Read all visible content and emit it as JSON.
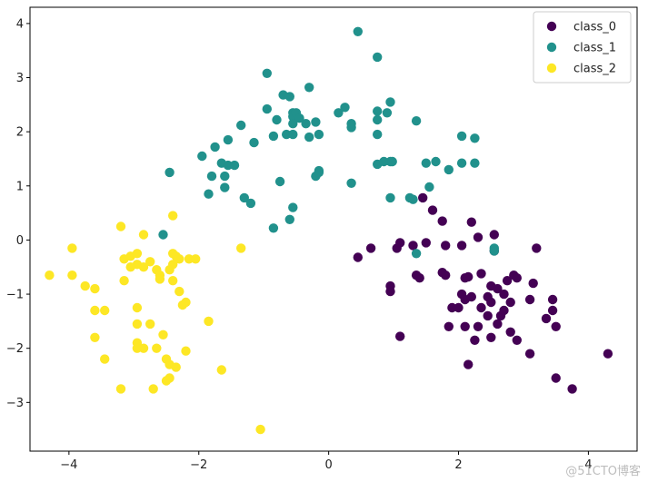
{
  "chart_data": {
    "type": "scatter",
    "xlim": [
      -4.6,
      4.75
    ],
    "ylim": [
      -3.9,
      4.3
    ],
    "xticks": [
      -4,
      -2,
      0,
      2,
      4
    ],
    "yticks": [
      -3,
      -2,
      -1,
      0,
      1,
      2,
      3,
      4
    ],
    "grid": false,
    "legend_position": "top-right",
    "series": [
      {
        "name": "class_0",
        "color": "#440154",
        "points": [
          [
            1.45,
            0.78
          ],
          [
            1.6,
            0.55
          ],
          [
            1.75,
            0.35
          ],
          [
            2.2,
            0.33
          ],
          [
            0.65,
            -0.15
          ],
          [
            0.45,
            -0.32
          ],
          [
            1.05,
            -0.15
          ],
          [
            1.1,
            -0.05
          ],
          [
            1.3,
            -0.1
          ],
          [
            1.5,
            -0.05
          ],
          [
            1.8,
            -0.1
          ],
          [
            2.05,
            -0.1
          ],
          [
            2.3,
            0.05
          ],
          [
            2.55,
            0.1
          ],
          [
            2.55,
            -0.2
          ],
          [
            3.2,
            -0.15
          ],
          [
            0.95,
            -0.85
          ],
          [
            0.95,
            -0.95
          ],
          [
            1.35,
            -0.65
          ],
          [
            1.4,
            -0.7
          ],
          [
            1.75,
            -0.6
          ],
          [
            1.8,
            -0.65
          ],
          [
            2.1,
            -0.7
          ],
          [
            2.15,
            -0.68
          ],
          [
            2.35,
            -0.62
          ],
          [
            2.5,
            -0.85
          ],
          [
            2.6,
            -0.9
          ],
          [
            2.75,
            -0.75
          ],
          [
            2.85,
            -0.65
          ],
          [
            2.9,
            -0.7
          ],
          [
            3.15,
            -0.8
          ],
          [
            2.05,
            -1.0
          ],
          [
            2.1,
            -1.1
          ],
          [
            2.2,
            -1.05
          ],
          [
            2.45,
            -1.05
          ],
          [
            2.5,
            -1.15
          ],
          [
            2.7,
            -1.0
          ],
          [
            2.8,
            -1.15
          ],
          [
            3.1,
            -1.1
          ],
          [
            3.45,
            -1.1
          ],
          [
            1.9,
            -1.25
          ],
          [
            2.0,
            -1.25
          ],
          [
            2.35,
            -1.25
          ],
          [
            2.45,
            -1.4
          ],
          [
            2.65,
            -1.4
          ],
          [
            2.7,
            -1.3
          ],
          [
            3.45,
            -1.3
          ],
          [
            3.35,
            -1.45
          ],
          [
            1.85,
            -1.6
          ],
          [
            2.1,
            -1.6
          ],
          [
            2.3,
            -1.6
          ],
          [
            2.6,
            -1.55
          ],
          [
            3.5,
            -1.6
          ],
          [
            1.1,
            -1.78
          ],
          [
            2.25,
            -1.85
          ],
          [
            2.5,
            -1.8
          ],
          [
            2.9,
            -1.85
          ],
          [
            2.8,
            -1.7
          ],
          [
            3.1,
            -2.1
          ],
          [
            4.3,
            -2.1
          ],
          [
            2.15,
            -2.3
          ],
          [
            3.5,
            -2.55
          ],
          [
            3.75,
            -2.75
          ]
        ]
      },
      {
        "name": "class_1",
        "color": "#21918c",
        "points": [
          [
            0.45,
            3.85
          ],
          [
            0.75,
            3.38
          ],
          [
            -0.95,
            3.08
          ],
          [
            -0.3,
            2.82
          ],
          [
            -0.95,
            2.42
          ],
          [
            -0.8,
            2.22
          ],
          [
            -0.7,
            2.68
          ],
          [
            -0.6,
            2.65
          ],
          [
            -0.55,
            2.35
          ],
          [
            -0.55,
            2.28
          ],
          [
            -0.5,
            2.35
          ],
          [
            -0.45,
            2.25
          ],
          [
            -0.55,
            2.15
          ],
          [
            -0.35,
            2.15
          ],
          [
            -0.2,
            2.18
          ],
          [
            0.15,
            2.35
          ],
          [
            0.25,
            2.45
          ],
          [
            0.35,
            2.15
          ],
          [
            0.75,
            2.38
          ],
          [
            0.75,
            2.22
          ],
          [
            0.9,
            2.35
          ],
          [
            0.95,
            2.55
          ],
          [
            1.35,
            2.2
          ],
          [
            -1.35,
            2.12
          ],
          [
            -0.85,
            1.92
          ],
          [
            -0.65,
            1.95
          ],
          [
            -0.55,
            1.95
          ],
          [
            -0.3,
            1.9
          ],
          [
            -0.15,
            1.95
          ],
          [
            0.35,
            2.08
          ],
          [
            0.75,
            1.95
          ],
          [
            -1.15,
            1.8
          ],
          [
            -1.55,
            1.85
          ],
          [
            -1.75,
            1.72
          ],
          [
            -1.95,
            1.55
          ],
          [
            -1.65,
            1.42
          ],
          [
            -1.55,
            1.38
          ],
          [
            -1.45,
            1.38
          ],
          [
            -1.6,
            1.18
          ],
          [
            -1.8,
            1.18
          ],
          [
            -2.45,
            1.25
          ],
          [
            -0.15,
            1.28
          ],
          [
            -0.2,
            1.18
          ],
          [
            -0.15,
            1.25
          ],
          [
            0.75,
            1.4
          ],
          [
            0.85,
            1.45
          ],
          [
            0.95,
            1.45
          ],
          [
            0.98,
            1.45
          ],
          [
            1.5,
            1.42
          ],
          [
            1.65,
            1.45
          ],
          [
            1.85,
            1.3
          ],
          [
            2.05,
            1.42
          ],
          [
            2.25,
            1.42
          ],
          [
            2.05,
            1.92
          ],
          [
            2.25,
            1.88
          ],
          [
            -0.75,
            1.08
          ],
          [
            -1.6,
            0.97
          ],
          [
            -1.85,
            0.85
          ],
          [
            -1.3,
            0.78
          ],
          [
            -1.2,
            0.68
          ],
          [
            -0.55,
            0.6
          ],
          [
            -0.85,
            0.22
          ],
          [
            -0.6,
            0.38
          ],
          [
            0.35,
            1.05
          ],
          [
            0.95,
            0.78
          ],
          [
            1.25,
            0.78
          ],
          [
            1.55,
            0.98
          ],
          [
            1.3,
            0.75
          ],
          [
            -2.55,
            0.1
          ],
          [
            1.35,
            -0.25
          ],
          [
            2.55,
            -0.2
          ],
          [
            2.55,
            -0.15
          ]
        ]
      },
      {
        "name": "class_2",
        "color": "#fde725",
        "points": [
          [
            -3.2,
            0.25
          ],
          [
            -2.85,
            0.1
          ],
          [
            -2.4,
            0.45
          ],
          [
            -1.35,
            -0.15
          ],
          [
            -3.95,
            -0.15
          ],
          [
            -3.15,
            -0.35
          ],
          [
            -3.05,
            -0.3
          ],
          [
            -2.95,
            -0.25
          ],
          [
            -2.95,
            -0.45
          ],
          [
            -2.85,
            -0.5
          ],
          [
            -2.75,
            -0.4
          ],
          [
            -2.65,
            -0.55
          ],
          [
            -2.4,
            -0.25
          ],
          [
            -2.35,
            -0.3
          ],
          [
            -2.3,
            -0.35
          ],
          [
            -2.15,
            -0.35
          ],
          [
            -2.4,
            -0.45
          ],
          [
            -2.45,
            -0.55
          ],
          [
            -3.05,
            -0.5
          ],
          [
            -4.3,
            -0.65
          ],
          [
            -3.95,
            -0.65
          ],
          [
            -3.75,
            -0.85
          ],
          [
            -3.6,
            -0.9
          ],
          [
            -3.15,
            -0.75
          ],
          [
            -2.6,
            -0.65
          ],
          [
            -2.6,
            -0.72
          ],
          [
            -2.4,
            -0.75
          ],
          [
            -3.6,
            -1.3
          ],
          [
            -3.45,
            -1.3
          ],
          [
            -2.95,
            -1.25
          ],
          [
            -2.2,
            -1.15
          ],
          [
            -2.25,
            -1.2
          ],
          [
            -3.6,
            -1.8
          ],
          [
            -2.95,
            -1.55
          ],
          [
            -2.75,
            -1.55
          ],
          [
            -2.55,
            -1.75
          ],
          [
            -1.85,
            -1.5
          ],
          [
            -2.95,
            -1.9
          ],
          [
            -2.95,
            -2.0
          ],
          [
            -2.85,
            -2.0
          ],
          [
            -2.65,
            -2.0
          ],
          [
            -2.2,
            -2.05
          ],
          [
            -3.45,
            -2.2
          ],
          [
            -2.5,
            -2.2
          ],
          [
            -2.45,
            -2.3
          ],
          [
            -2.35,
            -2.35
          ],
          [
            -1.65,
            -2.4
          ],
          [
            -2.45,
            -2.55
          ],
          [
            -2.5,
            -2.6
          ],
          [
            -3.2,
            -2.75
          ],
          [
            -2.7,
            -2.75
          ],
          [
            -1.05,
            -3.5
          ],
          [
            -2.05,
            -0.35
          ],
          [
            -2.3,
            -0.95
          ]
        ]
      }
    ]
  },
  "watermark": "@51CTO博客"
}
